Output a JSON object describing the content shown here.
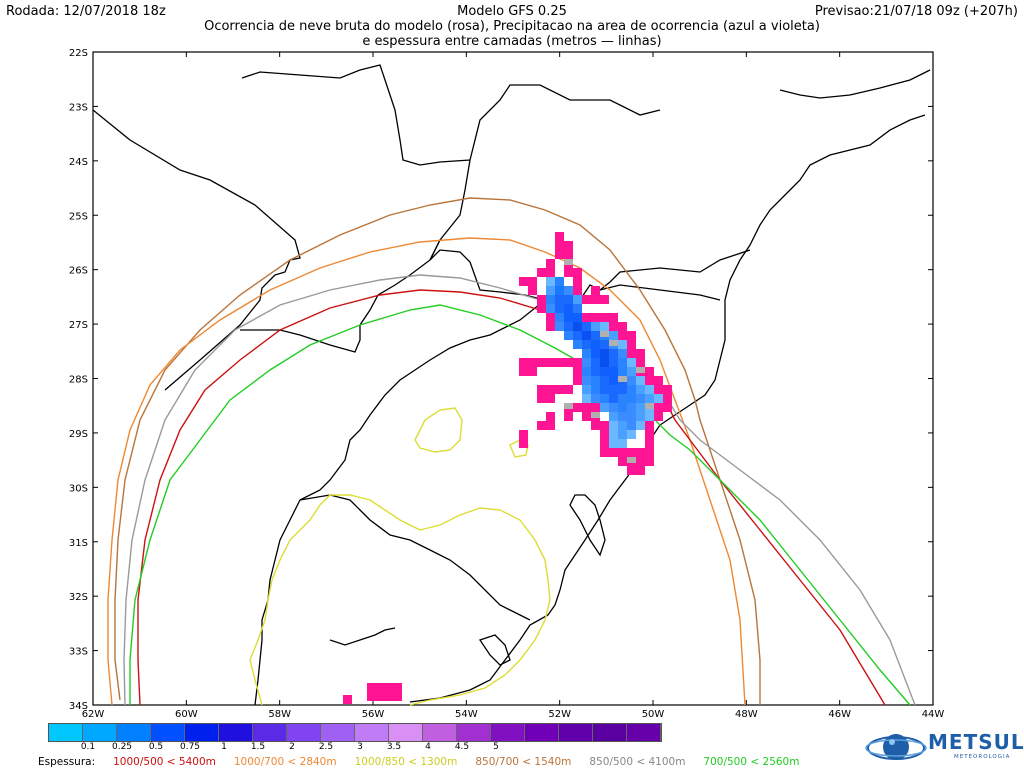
{
  "header": {
    "left": "Rodada: 12/07/2018 18z",
    "center": "Modelo GFS 0.25",
    "right": "Previsao:21/07/18 09z (+207h)",
    "subtitle_line1": "Ocorrencia de neve bruta do modelo (rosa), Precipitacao na area de ocorrencia (azul a violeta)",
    "subtitle_line2": "e espessura entre camadas (metros — linhas)"
  },
  "map": {
    "lat_labels": [
      "22S",
      "23S",
      "24S",
      "25S",
      "26S",
      "27S",
      "28S",
      "29S",
      "30S",
      "31S",
      "32S",
      "33S",
      "34S"
    ],
    "lon_labels": [
      "62W",
      "60W",
      "58W",
      "56W",
      "54W",
      "52W",
      "50W",
      "48W",
      "46W",
      "44W"
    ],
    "colors": {
      "snow": "#ff1493",
      "border": "#000000",
      "line_1000_500": "#cc1111",
      "line_1000_700": "#ee8833",
      "line_1000_850": "#dddd33",
      "line_850_700": "#b8743a",
      "line_850_500": "#999999",
      "line_700_500": "#22cc22"
    }
  },
  "colorbar": {
    "colors": [
      "#00c8ff",
      "#00a8ff",
      "#0080ff",
      "#0050ff",
      "#0020ee",
      "#2010e0",
      "#5a2ae6",
      "#8044f0",
      "#a060f4",
      "#c07cf4",
      "#d890f4",
      "#c060e0",
      "#a030d0",
      "#8010c0",
      "#7000b8",
      "#6000aa",
      "#5a00a0",
      "#6600aa"
    ],
    "labels": [
      "0.1",
      "0.25",
      "0.5",
      "0.75",
      "1",
      "1.5",
      "2",
      "2.5",
      "3",
      "3.5",
      "4",
      "4.5",
      "5"
    ]
  },
  "espessura": {
    "title": "Espessura:",
    "items": [
      {
        "text": "1000/500 < 5400m",
        "color": "#cc1111"
      },
      {
        "text": "1000/700 < 2840m",
        "color": "#ee8833"
      },
      {
        "text": "1000/850 < 1300m",
        "color": "#cccc22"
      },
      {
        "text": "850/700 < 1540m",
        "color": "#b8743a"
      },
      {
        "text": "850/500 < 4100m",
        "color": "#888888"
      },
      {
        "text": "700/500 < 2560m",
        "color": "#22cc22"
      }
    ]
  },
  "logo": {
    "name": "METSUL",
    "sub": "METEOROLOGIA"
  }
}
